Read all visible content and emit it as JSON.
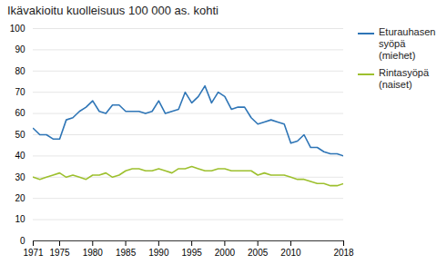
{
  "chart_data": {
    "type": "line",
    "title": "Ikävakioitu kuolleisuus 100 000 as. kohti",
    "x": [
      1971,
      1972,
      1973,
      1974,
      1975,
      1976,
      1977,
      1978,
      1979,
      1980,
      1981,
      1982,
      1983,
      1984,
      1985,
      1986,
      1987,
      1988,
      1989,
      1990,
      1991,
      1992,
      1993,
      1994,
      1995,
      1996,
      1997,
      1998,
      1999,
      2000,
      2001,
      2002,
      2003,
      2004,
      2005,
      2006,
      2007,
      2008,
      2009,
      2010,
      2011,
      2012,
      2013,
      2014,
      2015,
      2016,
      2017,
      2018
    ],
    "series": [
      {
        "name": "Eturauhasen\nsyöpä (miehet)",
        "color": "#2e75b6",
        "values": [
          53,
          50,
          50,
          48,
          48,
          57,
          58,
          61,
          63,
          66,
          61,
          60,
          64,
          64,
          61,
          61,
          61,
          60,
          61,
          66,
          60,
          61,
          62,
          70,
          65,
          68,
          73,
          65,
          70,
          68,
          62,
          63,
          63,
          58,
          55,
          56,
          57,
          56,
          55,
          46,
          47,
          50,
          44,
          44,
          42,
          41,
          41,
          40
        ]
      },
      {
        "name": "Rintasyöpä\n(naiset)",
        "color": "#9dc02e",
        "values": [
          30,
          29,
          30,
          31,
          32,
          30,
          31,
          30,
          29,
          31,
          31,
          32,
          30,
          31,
          33,
          34,
          34,
          33,
          33,
          34,
          33,
          32,
          34,
          34,
          35,
          34,
          33,
          33,
          34,
          34,
          33,
          33,
          33,
          33,
          31,
          32,
          31,
          31,
          31,
          30,
          29,
          29,
          28,
          27,
          27,
          26,
          26,
          27
        ]
      }
    ],
    "xlim": [
      1971,
      2018
    ],
    "xticks": [
      1971,
      1975,
      1980,
      1985,
      1990,
      1995,
      2000,
      2005,
      2010,
      2018
    ],
    "ylim": [
      0,
      100
    ],
    "yticks": [
      0,
      10,
      20,
      30,
      40,
      50,
      60,
      70,
      80,
      90,
      100
    ],
    "grid": true,
    "legend": "upper right"
  }
}
